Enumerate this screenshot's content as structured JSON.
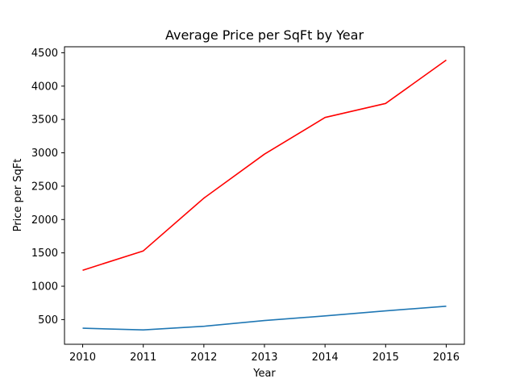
{
  "chart_data": {
    "type": "line",
    "title": "Average Price per SqFt by Year",
    "xlabel": "Year",
    "ylabel": "Price per SqFt",
    "x": [
      2010,
      2011,
      2012,
      2013,
      2014,
      2015,
      2016
    ],
    "xlim": [
      2009.7,
      2016.3
    ],
    "ylim": [
      130,
      4590
    ],
    "yticks": [
      500,
      1000,
      1500,
      2000,
      2500,
      3000,
      3500,
      4000,
      4500
    ],
    "grid": false,
    "series": [
      {
        "color": "#ff0000",
        "values": [
          1240,
          1530,
          2320,
          2980,
          3530,
          3740,
          4390
        ]
      },
      {
        "color": "#1f77b4",
        "values": [
          370,
          345,
          400,
          485,
          555,
          630,
          700
        ]
      }
    ]
  }
}
